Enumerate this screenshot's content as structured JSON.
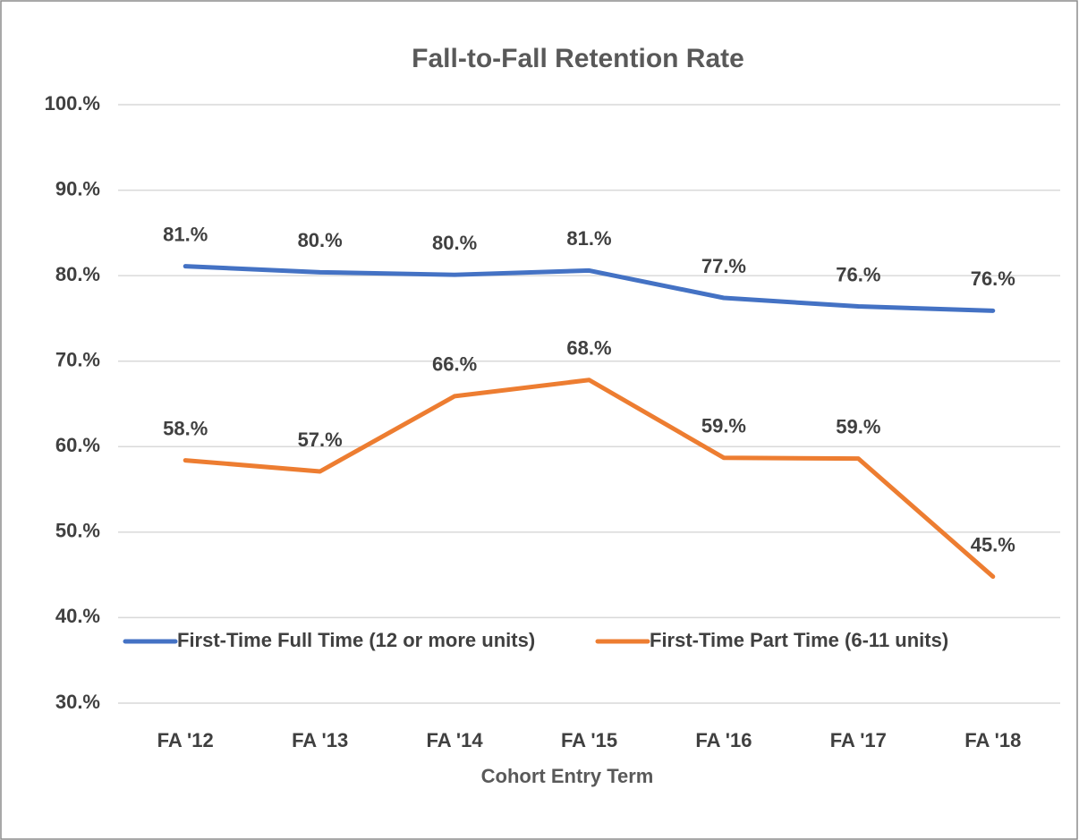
{
  "chart_data": {
    "type": "line",
    "title": "Fall-to-Fall Retention Rate",
    "x_label": "Cohort Entry Term",
    "categories": [
      "FA '12",
      "FA '13",
      "FA '14",
      "FA '15",
      "FA '16",
      "FA '17",
      "FA '18"
    ],
    "series": [
      {
        "name": "First-Time Full Time (12 or more units)",
        "color": "#4472c4",
        "values": [
          81.1,
          80.4,
          80.1,
          80.6,
          77.4,
          76.4,
          75.9
        ],
        "value_labels": [
          "81.%",
          "80.%",
          "80.%",
          "81.%",
          "77.%",
          "76.%",
          "76.%"
        ]
      },
      {
        "name": "First-Time Part Time (6-11 units)",
        "color": "#ed7d31",
        "values": [
          58.4,
          57.1,
          65.9,
          67.8,
          58.7,
          58.6,
          44.8
        ],
        "value_labels": [
          "58.%",
          "57.%",
          "66.%",
          "68.%",
          "59.%",
          "59.%",
          "45.%"
        ]
      }
    ],
    "ylim": [
      30,
      100
    ],
    "yticks": [
      {
        "value": 30,
        "label": "30.%"
      },
      {
        "value": 40,
        "label": "40.%"
      },
      {
        "value": 50,
        "label": "50.%"
      },
      {
        "value": 60,
        "label": "60.%"
      },
      {
        "value": 70,
        "label": "70.%"
      },
      {
        "value": 80,
        "label": "80.%"
      },
      {
        "value": 90,
        "label": "90.%"
      },
      {
        "value": 100,
        "label": "100.%"
      }
    ],
    "grid": true
  }
}
